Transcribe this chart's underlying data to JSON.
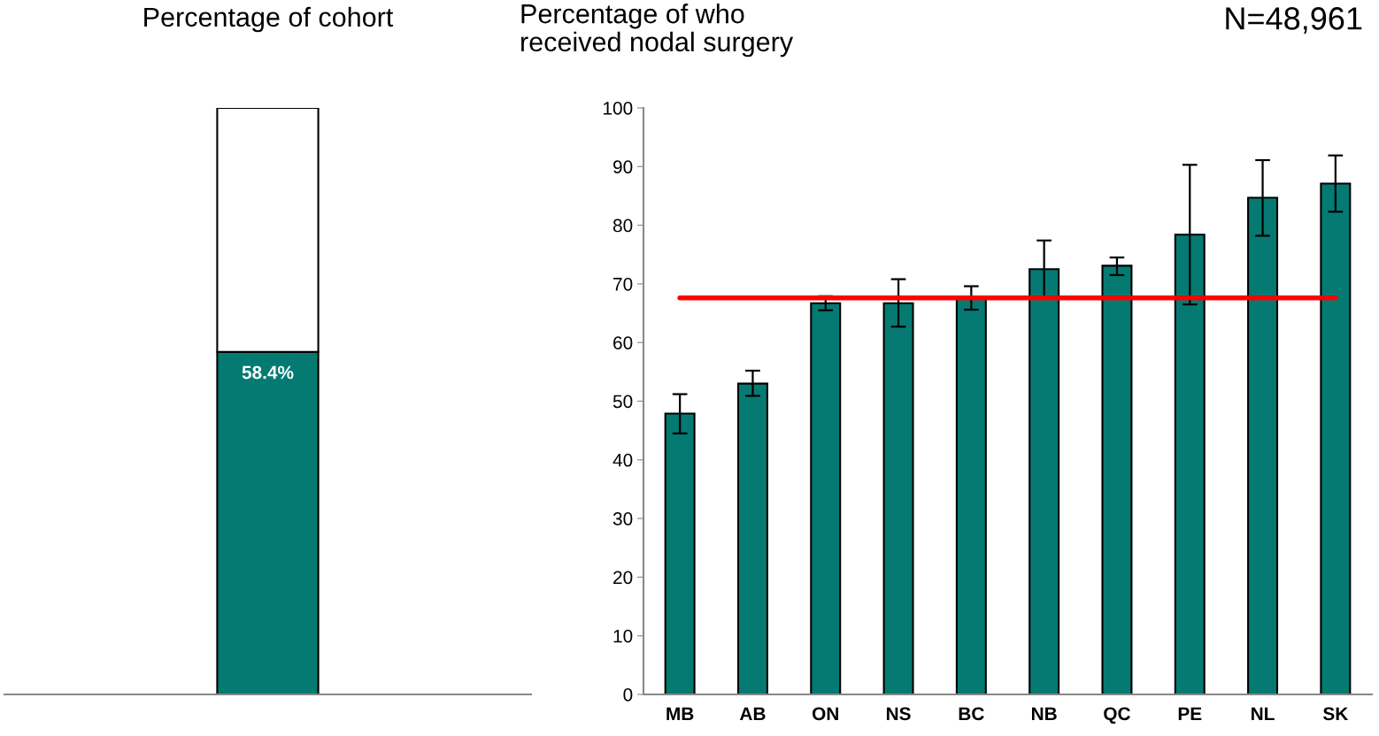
{
  "chart_data": [
    {
      "type": "bar",
      "title": "Percentage of cohort",
      "stacked": true,
      "categories": [
        null
      ],
      "ylim": [
        0,
        100
      ],
      "series": [
        {
          "color": "#047a72",
          "values": [
            58.4
          ],
          "value_labels": [
            "58.4%"
          ]
        },
        {
          "color": "#ffffff",
          "values": [
            41.6
          ]
        }
      ]
    },
    {
      "type": "bar",
      "title": "Percentage of who\nreceived nodal surgery",
      "annotations": [
        "N=48,961"
      ],
      "categories": [
        "MB",
        "AB",
        "ON",
        "NS",
        "BC",
        "NB",
        "QC",
        "PE",
        "NL",
        "SK"
      ],
      "series": [
        {
          "color": "#047a72",
          "values": [
            47.9,
            53.0,
            66.7,
            66.7,
            67.5,
            72.5,
            73.1,
            78.4,
            84.7,
            87.1
          ],
          "errors": [
            [
              44.5,
              51.2
            ],
            [
              50.9,
              55.2
            ],
            [
              65.5,
              67.9
            ],
            [
              62.7,
              70.8
            ],
            [
              65.6,
              69.6
            ],
            [
              67.6,
              77.4
            ],
            [
              71.5,
              74.5
            ],
            [
              66.5,
              90.3
            ],
            [
              78.2,
              91.1
            ],
            [
              82.3,
              91.9
            ]
          ]
        }
      ],
      "ylim": [
        0,
        100
      ],
      "yticks": [
        0,
        10,
        20,
        30,
        40,
        50,
        60,
        70,
        80,
        90,
        100
      ],
      "ref_lines": [
        {
          "axis": "y",
          "value": 67.6,
          "color": "#ff0000"
        }
      ]
    }
  ]
}
